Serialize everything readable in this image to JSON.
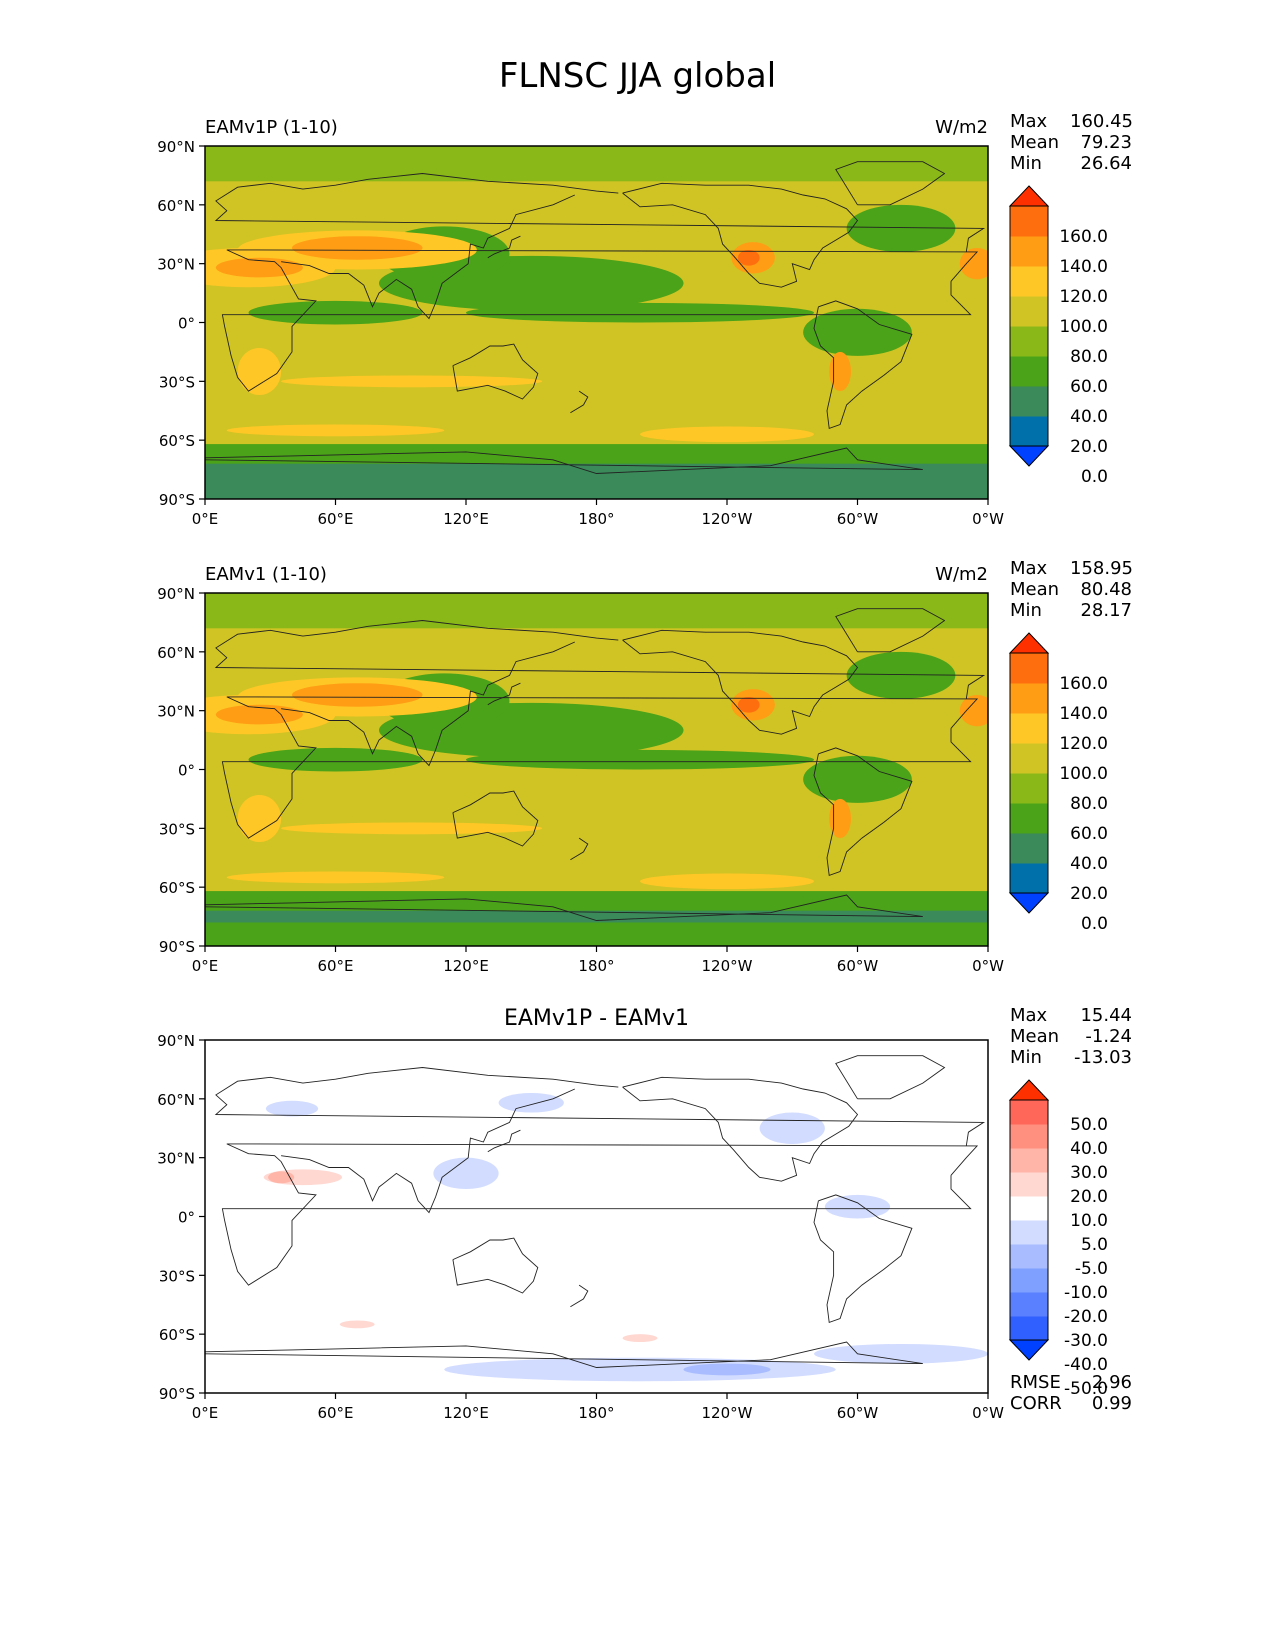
{
  "title": "FLNSC JJA global",
  "colors": {
    "abs_levels": [
      "#0040ff",
      "#0070aa",
      "#3a8a5a",
      "#4aa318",
      "#8ab818",
      "#d0c424",
      "#ffc726",
      "#ff9d14",
      "#ff6e0e",
      "#ff3000"
    ],
    "diff_levels": [
      "#0040ff",
      "#3060ff",
      "#5a80ff",
      "#80a0ff",
      "#a8bcff",
      "#d2dcff",
      "#ffffff",
      "#ffd8d2",
      "#ffb5a8",
      "#ff9080",
      "#ff6858",
      "#ff3000"
    ],
    "coast": "#222222"
  },
  "axes": {
    "lat_ticks": [
      "90°N",
      "60°N",
      "30°N",
      "0°",
      "30°S",
      "60°S",
      "90°S"
    ],
    "lon_ticks": [
      "0°E",
      "60°E",
      "120°E",
      "180°",
      "120°W",
      "60°W",
      "0°W"
    ]
  },
  "panels": [
    {
      "id": "test",
      "left_title": "EAMv1P (1-10)",
      "units": "W/m2",
      "center_title": "",
      "stats": [
        {
          "label": "Max",
          "value": "160.45"
        },
        {
          "label": "Mean",
          "value": "79.23"
        },
        {
          "label": "Min",
          "value": "26.64"
        }
      ],
      "colorbar_labels": [
        "160.0",
        "140.0",
        "120.0",
        "100.0",
        "80.0",
        "60.0",
        "40.0",
        "20.0",
        "0.0"
      ],
      "extra_stats": []
    },
    {
      "id": "ref",
      "left_title": "EAMv1 (1-10)",
      "units": "W/m2",
      "center_title": "",
      "stats": [
        {
          "label": "Max",
          "value": "158.95"
        },
        {
          "label": "Mean",
          "value": "80.48"
        },
        {
          "label": "Min",
          "value": "28.17"
        }
      ],
      "colorbar_labels": [
        "160.0",
        "140.0",
        "120.0",
        "100.0",
        "80.0",
        "60.0",
        "40.0",
        "20.0",
        "0.0"
      ],
      "extra_stats": []
    },
    {
      "id": "diff",
      "left_title": "",
      "units": "",
      "center_title": "EAMv1P - EAMv1",
      "stats": [
        {
          "label": "Max",
          "value": "15.44"
        },
        {
          "label": "Mean",
          "value": "-1.24"
        },
        {
          "label": "Min",
          "value": "-13.03"
        }
      ],
      "colorbar_labels": [
        "50.0",
        "40.0",
        "30.0",
        "20.0",
        "10.0",
        "5.0",
        "-5.0",
        "-10.0",
        "-20.0",
        "-30.0",
        "-40.0",
        "-50.0"
      ],
      "extra_stats": [
        {
          "label": "RMSE",
          "value": "2.96"
        },
        {
          "label": "CORR",
          "value": "0.99"
        }
      ]
    }
  ]
}
